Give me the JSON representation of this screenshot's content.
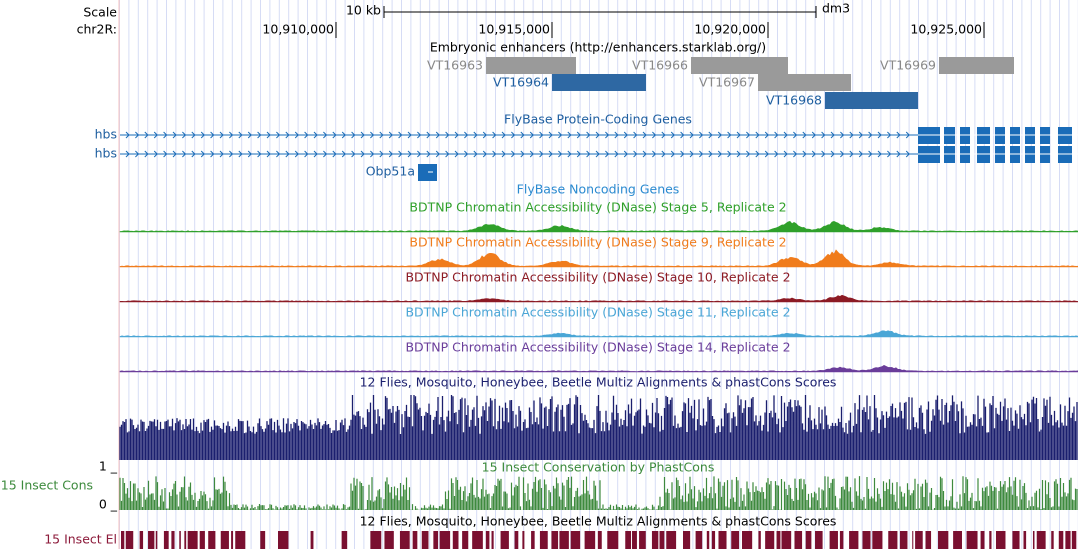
{
  "scale": {
    "label": "Scale",
    "bar_label": "10 kb",
    "assembly": "dm3"
  },
  "ruler": {
    "chrom": "chr2R:",
    "positions": [
      "10,910,000",
      "10,915,000",
      "10,920,000",
      "10,925,000"
    ]
  },
  "enhancers": {
    "title": "Embryonic enhancers (http://enhancers.starklab.org/)",
    "items": [
      {
        "name": "VT16963"
      },
      {
        "name": "VT16964"
      },
      {
        "name": "VT16966"
      },
      {
        "name": "VT16967"
      },
      {
        "name": "VT16968"
      },
      {
        "name": "VT16969"
      }
    ]
  },
  "genes": {
    "title": "FlyBase Protein-Coding Genes",
    "items": [
      {
        "name": "hbs"
      },
      {
        "name": "hbs"
      },
      {
        "name": "Obp51a"
      }
    ]
  },
  "noncoding": {
    "title": "FlyBase Noncoding Genes"
  },
  "dnase": [
    {
      "title": "BDTNP Chromatin Accessibility (DNase) Stage 5, Replicate 2"
    },
    {
      "title": "BDTNP Chromatin Accessibility (DNase) Stage 9, Replicate 2"
    },
    {
      "title": "BDTNP Chromatin Accessibility (DNase) Stage 10, Replicate 2"
    },
    {
      "title": "BDTNP Chromatin Accessibility (DNase) Stage 11, Replicate 2"
    },
    {
      "title": "BDTNP Chromatin Accessibility (DNase) Stage 14, Replicate 2"
    }
  ],
  "multiz": {
    "title": "12 Flies, Mosquito, Honeybee, Beetle Multiz Alignments & phastCons Scores"
  },
  "cons": {
    "title": "15 Insect Conservation by PhastCons",
    "side_label": "15 Insect Cons",
    "top": "1 _",
    "bottom": "0 _"
  },
  "elements": {
    "title": "12 Flies, Mosquito, Honeybee, Beetle Multiz Alignments & phastCons Scores",
    "side_label": "15 Insect El"
  }
}
